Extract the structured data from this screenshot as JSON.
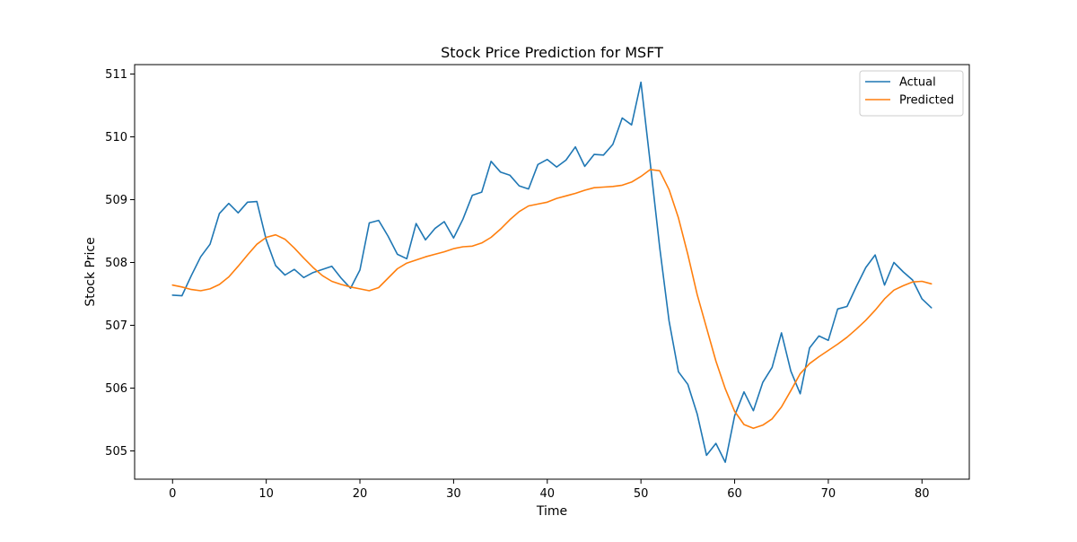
{
  "chart_data": {
    "type": "line",
    "title": "Stock Price Prediction for MSFT",
    "xlabel": "Time",
    "ylabel": "Stock Price",
    "xlim": [
      -4.05,
      85.05
    ],
    "ylim": [
      504.55,
      511.15
    ],
    "xticks": [
      0,
      10,
      20,
      30,
      40,
      50,
      60,
      70,
      80
    ],
    "yticks": [
      505,
      506,
      507,
      508,
      509,
      510,
      511
    ],
    "grid": false,
    "legend_position": "upper right",
    "series": [
      {
        "name": "Actual",
        "color": "#1f77b4",
        "values": [
          507.48,
          507.47,
          507.79,
          508.09,
          508.29,
          508.78,
          508.94,
          508.79,
          508.96,
          508.97,
          508.36,
          507.95,
          507.8,
          507.89,
          507.76,
          507.84,
          507.89,
          507.94,
          507.75,
          507.59,
          507.88,
          508.63,
          508.67,
          508.42,
          508.13,
          508.06,
          508.62,
          508.36,
          508.54,
          508.65,
          508.39,
          508.69,
          509.07,
          509.12,
          509.61,
          509.44,
          509.39,
          509.22,
          509.17,
          509.56,
          509.64,
          509.52,
          509.63,
          509.84,
          509.53,
          509.72,
          509.71,
          509.88,
          510.3,
          510.19,
          510.87,
          509.57,
          508.24,
          507.07,
          506.26,
          506.06,
          505.59,
          504.93,
          505.12,
          504.82,
          505.56,
          505.94,
          505.64,
          506.09,
          506.33,
          506.88,
          506.27,
          505.91,
          506.64,
          506.83,
          506.76,
          507.26,
          507.3,
          507.62,
          507.92,
          508.12,
          507.64,
          508.0,
          507.85,
          507.72,
          507.42,
          507.28
        ]
      },
      {
        "name": "Predicted",
        "color": "#ff7f0e",
        "values": [
          507.64,
          507.61,
          507.57,
          507.55,
          507.58,
          507.65,
          507.77,
          507.94,
          508.12,
          508.29,
          508.4,
          508.44,
          508.37,
          508.23,
          508.07,
          507.92,
          507.79,
          507.7,
          507.65,
          507.61,
          507.58,
          507.55,
          507.6,
          507.75,
          507.9,
          507.99,
          508.04,
          508.09,
          508.13,
          508.17,
          508.22,
          508.25,
          508.26,
          508.31,
          508.4,
          508.53,
          508.68,
          508.81,
          508.9,
          508.93,
          508.96,
          509.02,
          509.06,
          509.1,
          509.15,
          509.19,
          509.2,
          509.21,
          509.23,
          509.28,
          509.37,
          509.48,
          509.46,
          509.16,
          508.71,
          508.13,
          507.49,
          506.96,
          506.43,
          505.99,
          505.63,
          505.42,
          505.36,
          505.41,
          505.51,
          505.7,
          505.96,
          506.23,
          506.39,
          506.5,
          506.6,
          506.7,
          506.81,
          506.94,
          507.08,
          507.24,
          507.42,
          507.56,
          507.63,
          507.69,
          507.7,
          507.66
        ]
      }
    ]
  }
}
